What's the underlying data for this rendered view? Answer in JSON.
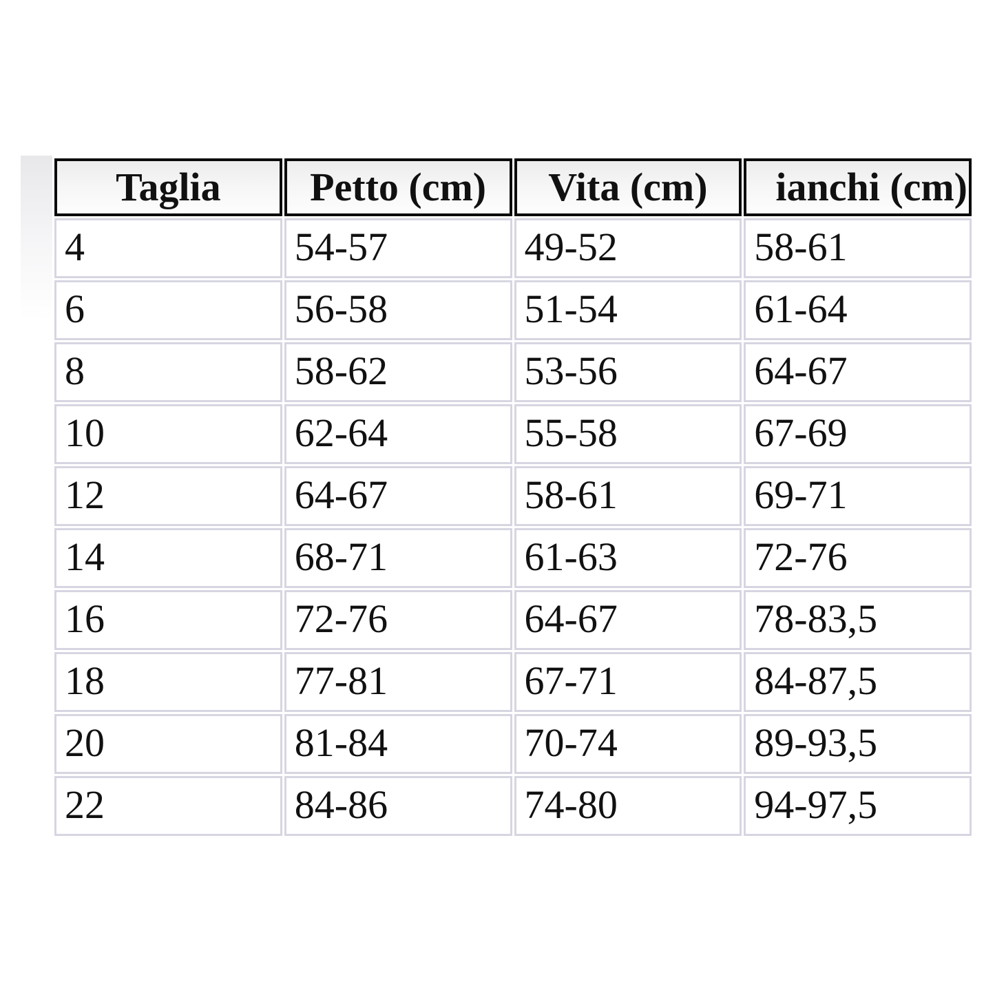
{
  "page": {
    "background_color": "#ffffff",
    "text_color": "#111111"
  },
  "colors": {
    "header_border": "#0b0b0b",
    "header_background_top": "#ededed",
    "header_background_bottom": "#fdfdfd",
    "body_cell_border": "#d6d6e2",
    "body_cell_background": "#ffffff"
  },
  "table": {
    "columns": [
      {
        "label": "Taglia"
      },
      {
        "label": "Petto (cm)"
      },
      {
        "label": "Vita (cm)"
      },
      {
        "label": "ianchi (cm)"
      }
    ],
    "rows": [
      {
        "taglia": "4",
        "petto": "54-57",
        "vita": "49-52",
        "fianchi": "58-61"
      },
      {
        "taglia": "6",
        "petto": "56-58",
        "vita": "51-54",
        "fianchi": "61-64"
      },
      {
        "taglia": "8",
        "petto": "58-62",
        "vita": "53-56",
        "fianchi": "64-67"
      },
      {
        "taglia": "10",
        "petto": "62-64",
        "vita": "55-58",
        "fianchi": "67-69"
      },
      {
        "taglia": "12",
        "petto": "64-67",
        "vita": "58-61",
        "fianchi": "69-71"
      },
      {
        "taglia": "14",
        "petto": "68-71",
        "vita": "61-63",
        "fianchi": "72-76"
      },
      {
        "taglia": "16",
        "petto": "72-76",
        "vita": "64-67",
        "fianchi": "78-83,5"
      },
      {
        "taglia": "18",
        "petto": "77-81",
        "vita": "67-71",
        "fianchi": "84-87,5"
      },
      {
        "taglia": "20",
        "petto": "81-84",
        "vita": "70-74",
        "fianchi": "89-93,5"
      },
      {
        "taglia": "22",
        "petto": "84-86",
        "vita": "74-80",
        "fianchi": "94-97,5"
      }
    ]
  },
  "chart_data": {
    "type": "table",
    "columns": [
      "Taglia",
      "Petto (cm)",
      "Vita (cm)",
      "ianchi (cm)"
    ],
    "rows": [
      [
        "4",
        "54-57",
        "49-52",
        "58-61"
      ],
      [
        "6",
        "56-58",
        "51-54",
        "61-64"
      ],
      [
        "8",
        "58-62",
        "53-56",
        "64-67"
      ],
      [
        "10",
        "62-64",
        "55-58",
        "67-69"
      ],
      [
        "12",
        "64-67",
        "58-61",
        "69-71"
      ],
      [
        "14",
        "68-71",
        "61-63",
        "72-76"
      ],
      [
        "16",
        "72-76",
        "64-67",
        "78-83,5"
      ],
      [
        "18",
        "77-81",
        "67-71",
        "84-87,5"
      ],
      [
        "20",
        "81-84",
        "70-74",
        "89-93,5"
      ],
      [
        "22",
        "84-86",
        "74-80",
        "94-97,5"
      ]
    ]
  }
}
